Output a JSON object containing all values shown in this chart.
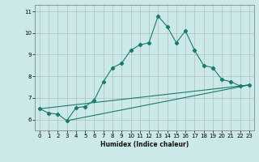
{
  "title": "",
  "xlabel": "Humidex (Indice chaleur)",
  "background_color": "#cce9e9",
  "grid_color": "#b0b0b0",
  "line_color": "#1a7a6e",
  "xlim": [
    -0.5,
    23.5
  ],
  "ylim": [
    5.5,
    11.3
  ],
  "xticks": [
    0,
    1,
    2,
    3,
    4,
    5,
    6,
    7,
    8,
    9,
    10,
    11,
    12,
    13,
    14,
    15,
    16,
    17,
    18,
    19,
    20,
    21,
    22,
    23
  ],
  "yticks": [
    6,
    7,
    8,
    9,
    10,
    11
  ],
  "line1_x": [
    0,
    1,
    2,
    3,
    4,
    5,
    6,
    7,
    8,
    9,
    10,
    11,
    12,
    13,
    14,
    15,
    16,
    17,
    18,
    19,
    20,
    21,
    22,
    23
  ],
  "line1_y": [
    6.5,
    6.3,
    6.25,
    5.95,
    6.55,
    6.6,
    6.9,
    7.75,
    8.4,
    8.6,
    9.2,
    9.45,
    9.55,
    10.78,
    10.3,
    9.55,
    10.1,
    9.2,
    8.5,
    8.4,
    7.85,
    7.75,
    7.55,
    7.6
  ],
  "line2_x": [
    0,
    23
  ],
  "line2_y": [
    6.5,
    7.6
  ],
  "line3_x": [
    3,
    23
  ],
  "line3_y": [
    5.95,
    7.6
  ],
  "xlabel_fontsize": 5.5,
  "tick_fontsize": 5
}
